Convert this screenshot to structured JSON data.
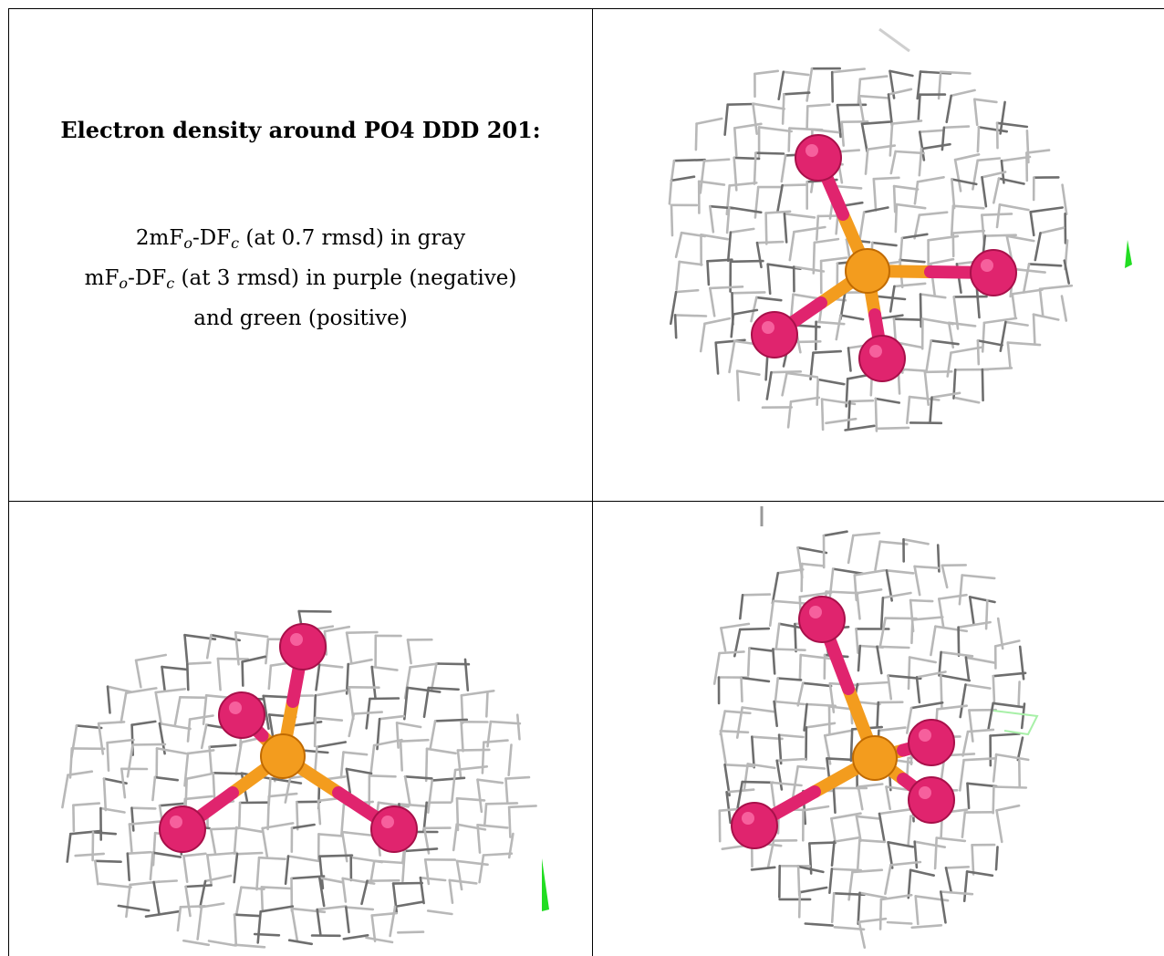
{
  "caption": {
    "title": "Electron density around PO4 DDD 201:",
    "line1": {
      "prefix": "2mF",
      "sub1": "o",
      "mid": "-DF",
      "sub2": "c",
      "suffix": " (at 0.7 rmsd) in gray"
    },
    "line2": {
      "prefix": "mF",
      "sub1": "o",
      "mid": "-DF",
      "sub2": "c",
      "suffix": " (at 3 rmsd) in purple (negative)"
    },
    "line3": "and green (positive)"
  },
  "colors": {
    "mesh": "#b8b8b8",
    "mesh_dark": "#6e6e6e",
    "phosphorus": "#f39c1e",
    "oxygen": "#e0246e",
    "positive_density": "#22dd22"
  },
  "views": [
    {
      "name": "view-top-right"
    },
    {
      "name": "view-bottom-left"
    },
    {
      "name": "view-bottom-right"
    }
  ]
}
